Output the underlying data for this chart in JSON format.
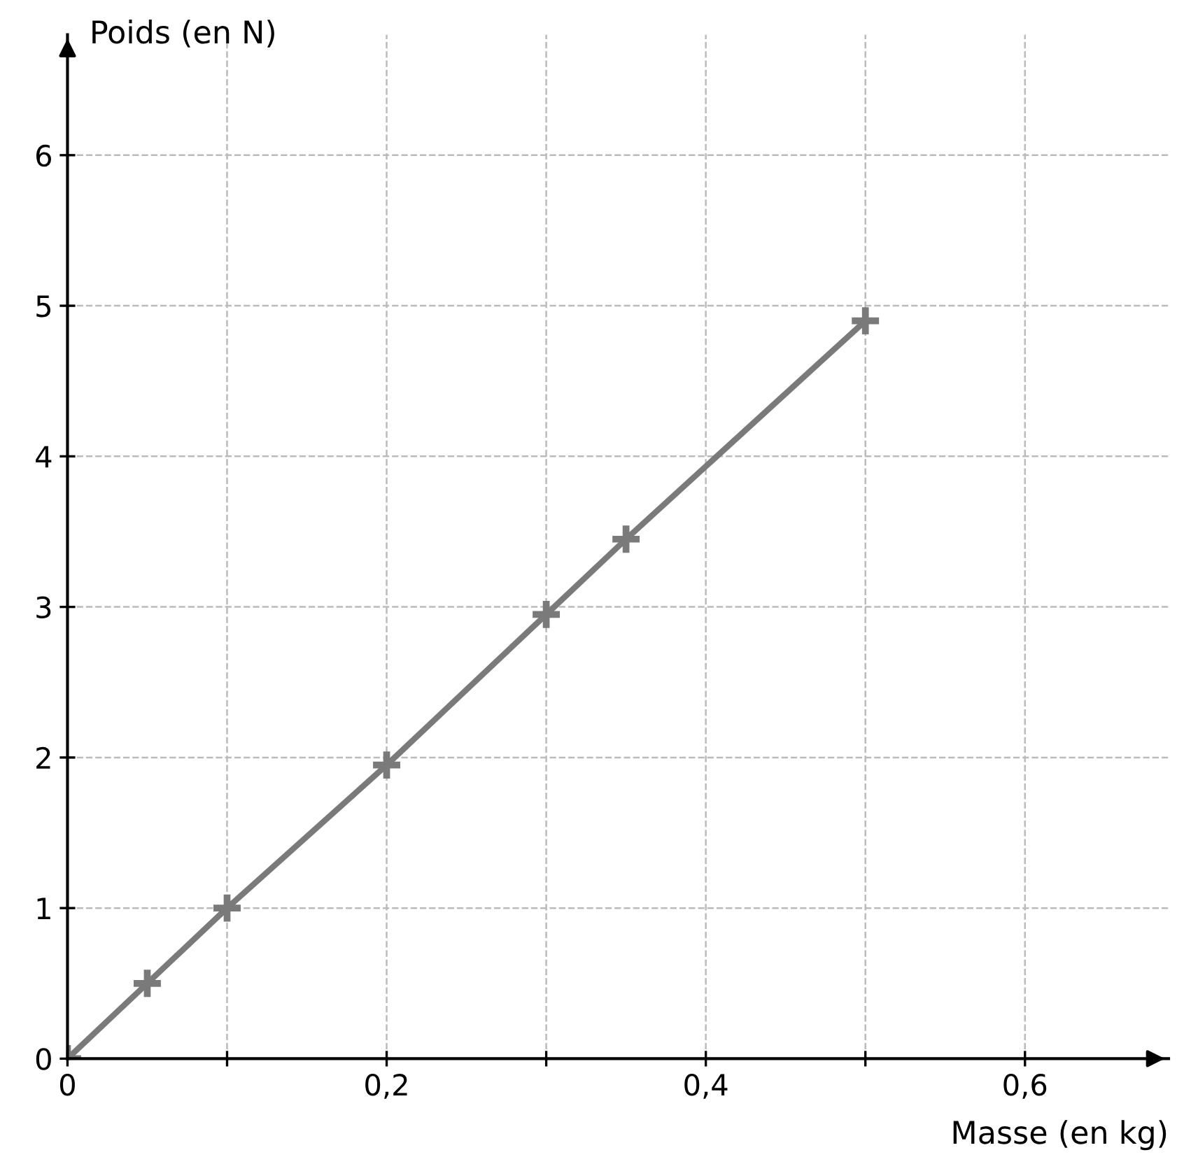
{
  "chart_data": {
    "type": "line",
    "xlabel": "Masse (en kg)",
    "ylabel": "Poids (en N)",
    "x": [
      0,
      0.05,
      0.1,
      0.2,
      0.3,
      0.35,
      0.5
    ],
    "series": [
      {
        "color": "#7a7a7a",
        "values": [
          0,
          0.5,
          1,
          1.95,
          2.95,
          3.45,
          4.9
        ]
      }
    ],
    "marker": "cross",
    "line_style": "solid",
    "grid": true,
    "xlim": [
      0,
      0.69
    ],
    "ylim": [
      0,
      6.8
    ],
    "xticks": [
      0,
      {
        "value": 0.1,
        "label": null
      },
      {
        "value": 0.2,
        "label": "0,2"
      },
      {
        "value": 0.3,
        "label": null
      },
      {
        "value": 0.4,
        "label": "0,4"
      },
      {
        "value": 0.5,
        "label": null
      },
      {
        "value": 0.6,
        "label": "0,6"
      }
    ],
    "yticks": [
      0,
      1,
      2,
      3,
      4,
      5,
      6
    ]
  }
}
